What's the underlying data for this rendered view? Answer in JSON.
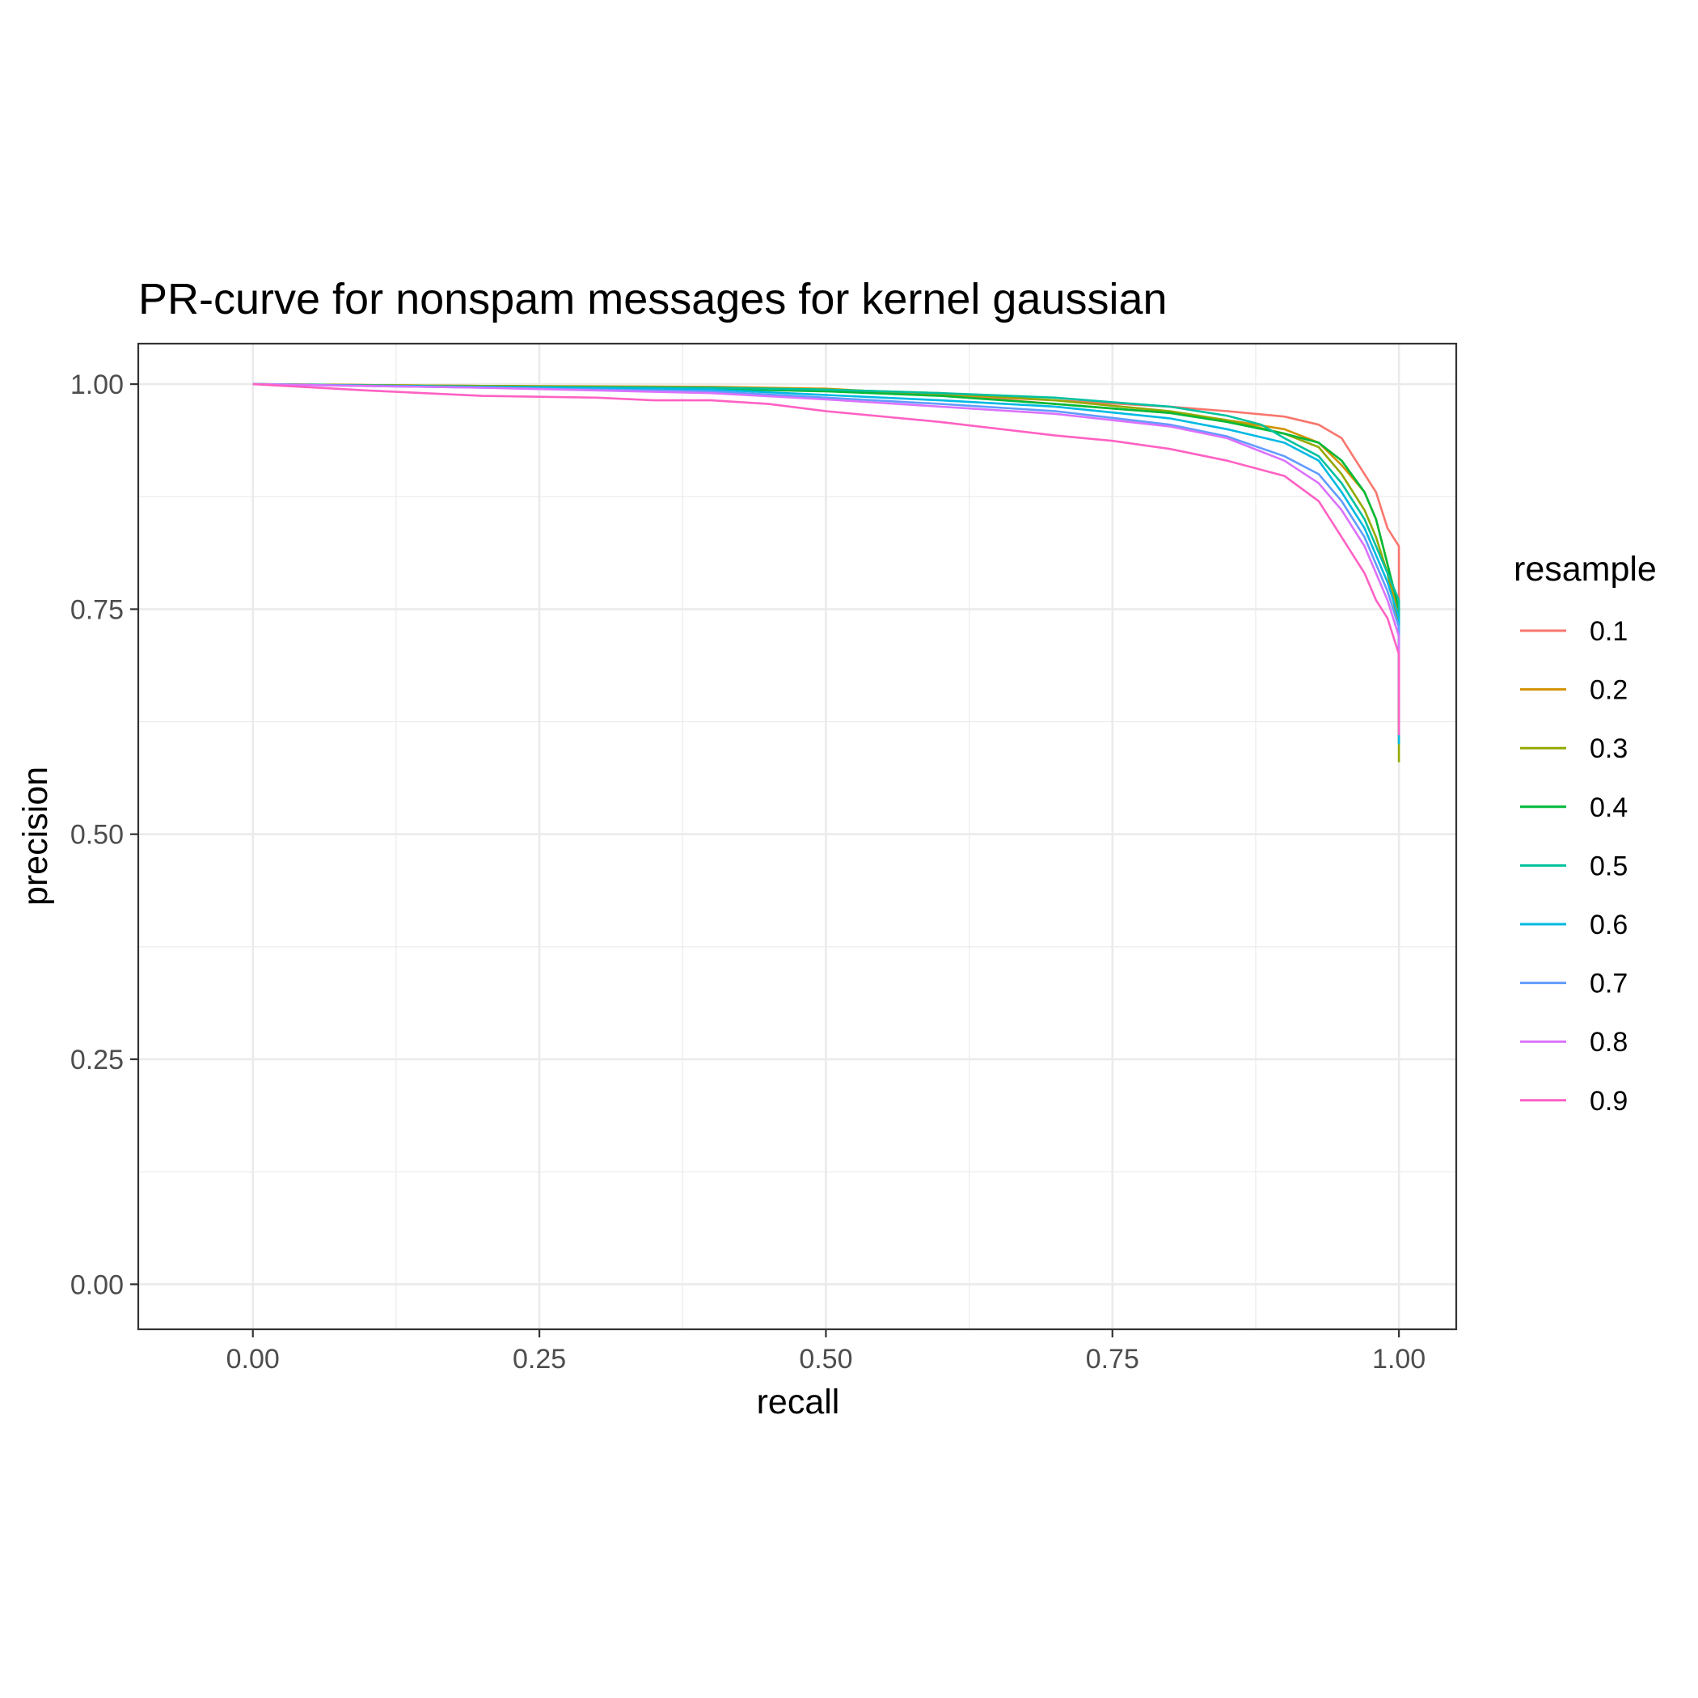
{
  "chart_data": {
    "type": "line",
    "title": "PR-curve for nonspam messages for kernel gaussian",
    "xlabel": "recall",
    "ylabel": "precision",
    "xlim": [
      -0.1,
      1.05
    ],
    "ylim": [
      -0.05,
      1.045
    ],
    "x_ticks": [
      0.0,
      0.25,
      0.5,
      0.75,
      1.0
    ],
    "x_tick_labels": [
      "0.00",
      "0.25",
      "0.50",
      "0.75",
      "1.00"
    ],
    "y_ticks": [
      0.0,
      0.25,
      0.5,
      0.75,
      1.0
    ],
    "y_tick_labels": [
      "0.00",
      "0.25",
      "0.50",
      "0.75",
      "1.00"
    ],
    "grid": true,
    "legend_title": "resample",
    "legend_position": "right",
    "series": [
      {
        "name": "0.1",
        "color": "#F8766D",
        "x": [
          0.0,
          0.2,
          0.4,
          0.5,
          0.6,
          0.7,
          0.8,
          0.85,
          0.9,
          0.93,
          0.95,
          0.96,
          0.97,
          0.98,
          0.99,
          0.995,
          1.0,
          1.0
        ],
        "y": [
          1.0,
          0.998,
          0.996,
          0.993,
          0.988,
          0.982,
          0.975,
          0.97,
          0.964,
          0.955,
          0.94,
          0.92,
          0.9,
          0.88,
          0.84,
          0.83,
          0.82,
          0.61
        ]
      },
      {
        "name": "0.2",
        "color": "#D39200",
        "x": [
          0.0,
          0.2,
          0.4,
          0.5,
          0.6,
          0.7,
          0.8,
          0.85,
          0.9,
          0.93,
          0.95,
          0.97,
          0.98,
          0.99,
          1.0,
          1.0
        ],
        "y": [
          1.0,
          0.998,
          0.997,
          0.995,
          0.988,
          0.978,
          0.968,
          0.96,
          0.95,
          0.935,
          0.91,
          0.88,
          0.85,
          0.8,
          0.74,
          0.6
        ]
      },
      {
        "name": "0.3",
        "color": "#93AA00",
        "x": [
          0.0,
          0.2,
          0.4,
          0.5,
          0.6,
          0.7,
          0.8,
          0.85,
          0.9,
          0.93,
          0.95,
          0.97,
          0.98,
          0.99,
          1.0,
          1.0
        ],
        "y": [
          1.0,
          0.998,
          0.996,
          0.994,
          0.99,
          0.982,
          0.97,
          0.96,
          0.945,
          0.93,
          0.9,
          0.86,
          0.83,
          0.79,
          0.73,
          0.58
        ]
      },
      {
        "name": "0.4",
        "color": "#00BA38",
        "x": [
          0.0,
          0.2,
          0.4,
          0.5,
          0.6,
          0.7,
          0.8,
          0.85,
          0.9,
          0.93,
          0.95,
          0.97,
          0.98,
          0.99,
          1.0,
          1.0
        ],
        "y": [
          1.0,
          0.997,
          0.995,
          0.992,
          0.987,
          0.978,
          0.968,
          0.958,
          0.945,
          0.935,
          0.915,
          0.88,
          0.85,
          0.8,
          0.75,
          0.65
        ]
      },
      {
        "name": "0.5",
        "color": "#00C19F",
        "x": [
          0.0,
          0.2,
          0.4,
          0.5,
          0.6,
          0.7,
          0.75,
          0.8,
          0.85,
          0.88,
          0.9,
          0.93,
          0.95,
          0.97,
          0.98,
          0.99,
          1.0,
          1.0
        ],
        "y": [
          1.0,
          0.997,
          0.996,
          0.994,
          0.99,
          0.985,
          0.98,
          0.975,
          0.965,
          0.955,
          0.94,
          0.92,
          0.89,
          0.85,
          0.82,
          0.79,
          0.76,
          0.66
        ]
      },
      {
        "name": "0.6",
        "color": "#00B9E3",
        "x": [
          0.0,
          0.2,
          0.4,
          0.5,
          0.6,
          0.7,
          0.8,
          0.85,
          0.9,
          0.93,
          0.95,
          0.97,
          0.98,
          0.99,
          1.0,
          1.0
        ],
        "y": [
          1.0,
          0.997,
          0.994,
          0.988,
          0.982,
          0.975,
          0.962,
          0.95,
          0.935,
          0.915,
          0.88,
          0.84,
          0.81,
          0.78,
          0.74,
          0.6
        ]
      },
      {
        "name": "0.7",
        "color": "#619CFF",
        "x": [
          0.0,
          0.2,
          0.4,
          0.5,
          0.6,
          0.7,
          0.8,
          0.85,
          0.9,
          0.93,
          0.95,
          0.97,
          0.98,
          0.99,
          1.0,
          1.0
        ],
        "y": [
          1.0,
          0.996,
          0.992,
          0.985,
          0.978,
          0.97,
          0.955,
          0.942,
          0.92,
          0.9,
          0.87,
          0.83,
          0.8,
          0.77,
          0.73,
          0.66
        ]
      },
      {
        "name": "0.8",
        "color": "#DB72FB",
        "x": [
          0.0,
          0.2,
          0.4,
          0.5,
          0.6,
          0.7,
          0.8,
          0.85,
          0.9,
          0.93,
          0.95,
          0.97,
          0.98,
          0.99,
          1.0,
          1.0
        ],
        "y": [
          1.0,
          0.996,
          0.99,
          0.983,
          0.975,
          0.967,
          0.953,
          0.94,
          0.915,
          0.89,
          0.86,
          0.82,
          0.79,
          0.76,
          0.72,
          0.65
        ]
      },
      {
        "name": "0.9",
        "color": "#FF61C3",
        "x": [
          0.0,
          0.1,
          0.2,
          0.3,
          0.35,
          0.4,
          0.45,
          0.5,
          0.6,
          0.7,
          0.75,
          0.8,
          0.85,
          0.9,
          0.93,
          0.95,
          0.97,
          0.98,
          0.99,
          1.0,
          1.0
        ],
        "y": [
          1.0,
          0.993,
          0.987,
          0.985,
          0.982,
          0.982,
          0.978,
          0.97,
          0.958,
          0.943,
          0.937,
          0.928,
          0.915,
          0.898,
          0.87,
          0.83,
          0.79,
          0.76,
          0.74,
          0.7,
          0.61
        ]
      }
    ]
  }
}
